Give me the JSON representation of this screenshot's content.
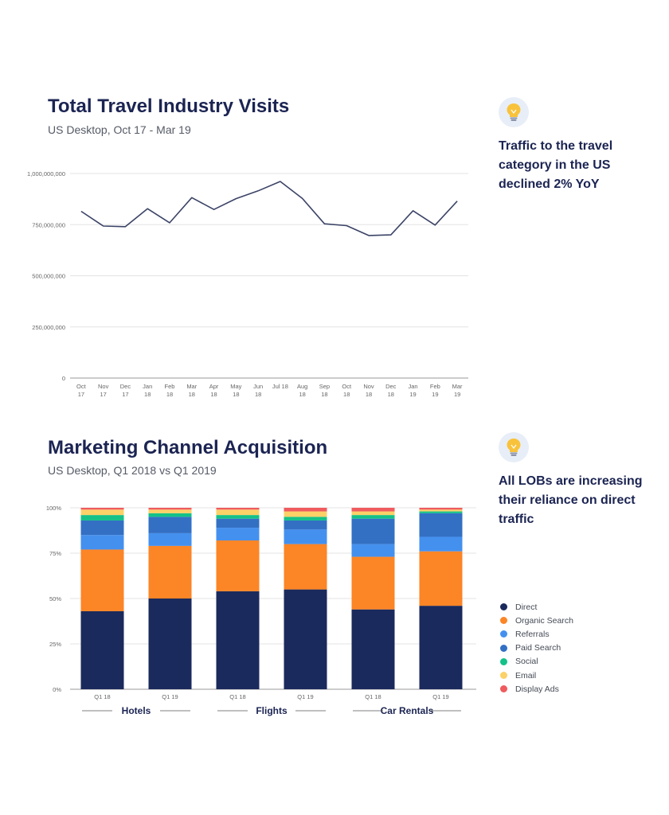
{
  "line_chart": {
    "title": "Total Travel Industry Visits",
    "subtitle": "US Desktop, Oct 17 - Mar 19"
  },
  "bar_chart": {
    "title": "Marketing Channel Acquisition",
    "subtitle": "US Desktop, Q1 2018 vs Q1 2019"
  },
  "insights": [
    {
      "icon": "lightbulb-icon",
      "text": "Traffic to the travel category in the US declined 2% YoY"
    },
    {
      "icon": "lightbulb-icon",
      "text": "All LOBs are increasing their reliance on direct traffic"
    }
  ],
  "colors": {
    "line": "#3b4366",
    "grid": "#e3e3e3",
    "axis": "#999999",
    "Direct": "#1b2a5c",
    "Organic Search": "#fc8526",
    "Referrals": "#4490ef",
    "Paid Search": "#3370c4",
    "Social": "#14c188",
    "Email": "#fbd168",
    "Display Ads": "#ef5b5e"
  },
  "chart_data": [
    {
      "type": "line",
      "title": "Total Travel Industry Visits",
      "subtitle": "US Desktop, Oct 17 - Mar 19",
      "categories": [
        [
          "Oct",
          "17"
        ],
        [
          "Nov",
          "17"
        ],
        [
          "Dec",
          "17"
        ],
        [
          "Jan",
          "18"
        ],
        [
          "Feb",
          "18"
        ],
        [
          "Mar",
          "18"
        ],
        [
          "Apr",
          "18"
        ],
        [
          "May",
          "18"
        ],
        [
          "Jun",
          "18"
        ],
        [
          "Jul 18",
          ""
        ],
        [
          "Aug",
          "18"
        ],
        [
          "Sep",
          "18"
        ],
        [
          "Oct",
          "18"
        ],
        [
          "Nov",
          "18"
        ],
        [
          "Dec",
          "18"
        ],
        [
          "Jan",
          "19"
        ],
        [
          "Feb",
          "19"
        ],
        [
          "Mar",
          "19"
        ]
      ],
      "values": [
        815000000,
        743000000,
        740000000,
        828000000,
        759000000,
        882000000,
        824000000,
        877000000,
        915000000,
        961000000,
        878000000,
        754000000,
        745000000,
        697000000,
        700000000,
        818000000,
        748000000,
        865000000
      ],
      "ylim": [
        0,
        1000000000
      ],
      "yticks": [
        0,
        250000000,
        500000000,
        750000000,
        1000000000
      ],
      "ytick_labels": [
        "0",
        "250,000,000",
        "500,000,000",
        "750,000,000",
        "1,000,000,000"
      ],
      "grid": true
    },
    {
      "type": "bar",
      "stacked": true,
      "title": "Marketing Channel Acquisition",
      "subtitle": "US Desktop, Q1 2018 vs Q1 2019",
      "categories": [
        "Q1 18",
        "Q1 19",
        "Q1 18",
        "Q1 19",
        "Q1 18",
        "Q1 19"
      ],
      "groups": [
        "Hotels",
        "Flights",
        "Car Rentals"
      ],
      "ylim": [
        0,
        100
      ],
      "yticks": [
        0,
        25,
        50,
        75,
        100
      ],
      "ytick_labels": [
        "0%",
        "25%",
        "50%",
        "75%",
        "100%"
      ],
      "legend_position": "right",
      "series": [
        {
          "name": "Direct",
          "values": [
            43,
            50,
            54,
            55,
            44,
            46
          ]
        },
        {
          "name": "Organic Search",
          "values": [
            34,
            29,
            28,
            25,
            29,
            30
          ]
        },
        {
          "name": "Referrals",
          "values": [
            8,
            7,
            7,
            8,
            7,
            8
          ]
        },
        {
          "name": "Paid Search",
          "values": [
            8,
            9,
            5,
            5,
            14,
            13
          ]
        },
        {
          "name": "Social",
          "values": [
            3,
            2,
            2,
            2,
            2,
            1
          ]
        },
        {
          "name": "Email",
          "values": [
            3,
            2,
            3,
            3,
            2,
            1
          ]
        },
        {
          "name": "Display Ads",
          "values": [
            1,
            1,
            1,
            2,
            2,
            1
          ]
        }
      ]
    }
  ]
}
